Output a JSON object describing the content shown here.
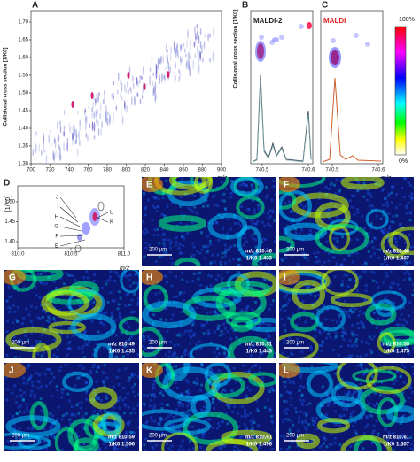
{
  "panel_a": {
    "letter": "A",
    "y_label": "Collisional cross section [1/K0]",
    "x_label": "m/z",
    "xticks": [
      "700",
      "720",
      "740",
      "760",
      "780",
      "800",
      "820",
      "840",
      "860",
      "880",
      "900"
    ],
    "yticks": [
      "1.70",
      "1.65",
      "1.60",
      "1.55",
      "1.50",
      "1.45",
      "1.40",
      "1.35",
      "1.30"
    ]
  },
  "panel_b": {
    "letter": "B",
    "title": "MALDI-2",
    "y_label": "Collisional cross section [1/K0]",
    "xticks": [
      "740.5",
      "740.6"
    ]
  },
  "panel_c": {
    "letter": "C",
    "title": "MALDI",
    "xticks": [
      "740.5",
      "740.6"
    ],
    "x_label": "m/z",
    "colorbar": [
      "100%",
      "0%"
    ]
  },
  "panel_d": {
    "letter": "D",
    "y_label": "[1/K0]",
    "yticks": [
      "1.50",
      "1.45",
      "1.40"
    ],
    "xticks": [
      "810.0",
      "810.5",
      "811.0"
    ],
    "x_label": "m/z",
    "labels_left": [
      "J",
      "I",
      "H",
      "G",
      "F",
      "E"
    ],
    "labels_right": [
      "L",
      "K"
    ]
  },
  "images": [
    {
      "letter": "E",
      "scale": "200 µm",
      "mz": "m/z 810.46",
      "k0": "1/K0 1.433"
    },
    {
      "letter": "F",
      "scale": "200 µm",
      "mz": "m/z 810.46",
      "k0": "1/K0 1.407"
    },
    {
      "letter": "G",
      "scale": "200 µm",
      "mz": "m/z 810.49",
      "k0": "1/K0 1.435"
    },
    {
      "letter": "H",
      "scale": "200 µm",
      "mz": "m/z 810.51",
      "k0": "1/K0 1.443"
    },
    {
      "letter": "I",
      "scale": "200 µm",
      "mz": "m/z 810.55",
      "k0": "1/K0 1.475"
    },
    {
      "letter": "J",
      "scale": "200 µm",
      "mz": "m/z 810.59",
      "k0": "1/K0 1.506"
    },
    {
      "letter": "K",
      "scale": "200 µm",
      "mz": "m/z 810.61",
      "k0": "1/K0 1.496"
    },
    {
      "letter": "L",
      "scale": "200 µm",
      "mz": "m/z 810.61",
      "k0": "1/K0 1.507"
    }
  ]
}
